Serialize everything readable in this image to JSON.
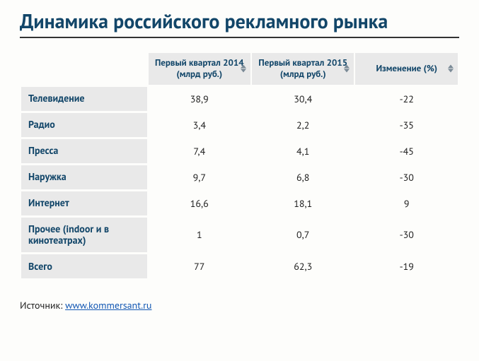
{
  "title": "Динамика российского рекламного рынка",
  "table": {
    "type": "table",
    "background_color": "#fdfdfb",
    "header_bg": "#e9e9e9",
    "header_text_color": "#124669",
    "cell_text_color": "#222222",
    "columns": [
      {
        "label": "Первый квартал 2014 (млрд руб.)",
        "sortable": true
      },
      {
        "label": "Первый квартал 2015 (млрд руб.)",
        "sortable": true
      },
      {
        "label": "Изменение (%)",
        "sortable": true
      }
    ],
    "rows": [
      {
        "label": "Телевидение",
        "values": [
          "38,9",
          "30,4",
          "-22"
        ]
      },
      {
        "label": "Радио",
        "values": [
          "3,4",
          "2,2",
          "-35"
        ]
      },
      {
        "label": "Пресса",
        "values": [
          "7,4",
          "4,1",
          "-45"
        ]
      },
      {
        "label": "Наружка",
        "values": [
          "9,7",
          "6,8",
          "-30"
        ]
      },
      {
        "label": "Интернет",
        "values": [
          "16,6",
          "18,1",
          "9"
        ]
      },
      {
        "label": "Прочее (indoor и в кинотеатрах)",
        "values": [
          "1",
          "0,7",
          "-30"
        ]
      },
      {
        "label": "Всего",
        "values": [
          "77",
          "62,3",
          "-19"
        ]
      }
    ]
  },
  "source": {
    "prefix": "Источник:",
    "link_text": "www.kommersant.ru"
  }
}
